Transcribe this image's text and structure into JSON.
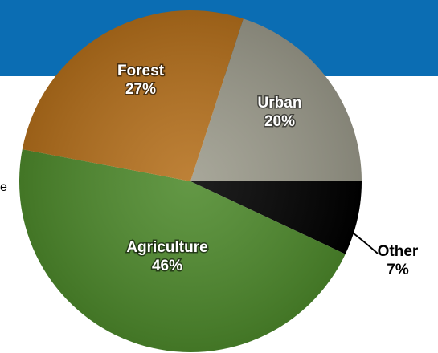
{
  "chart_data": {
    "type": "pie",
    "categories": [
      "Urban",
      "Other",
      "Agriculture",
      "Forest"
    ],
    "values": [
      20,
      7,
      46,
      27
    ],
    "value_labels": [
      "20%",
      "7%",
      "46%",
      "27%"
    ],
    "colors": [
      "#9c9b8c",
      "#000000",
      "#4e8a2c",
      "#b5701c"
    ],
    "annotation": "e"
  }
}
